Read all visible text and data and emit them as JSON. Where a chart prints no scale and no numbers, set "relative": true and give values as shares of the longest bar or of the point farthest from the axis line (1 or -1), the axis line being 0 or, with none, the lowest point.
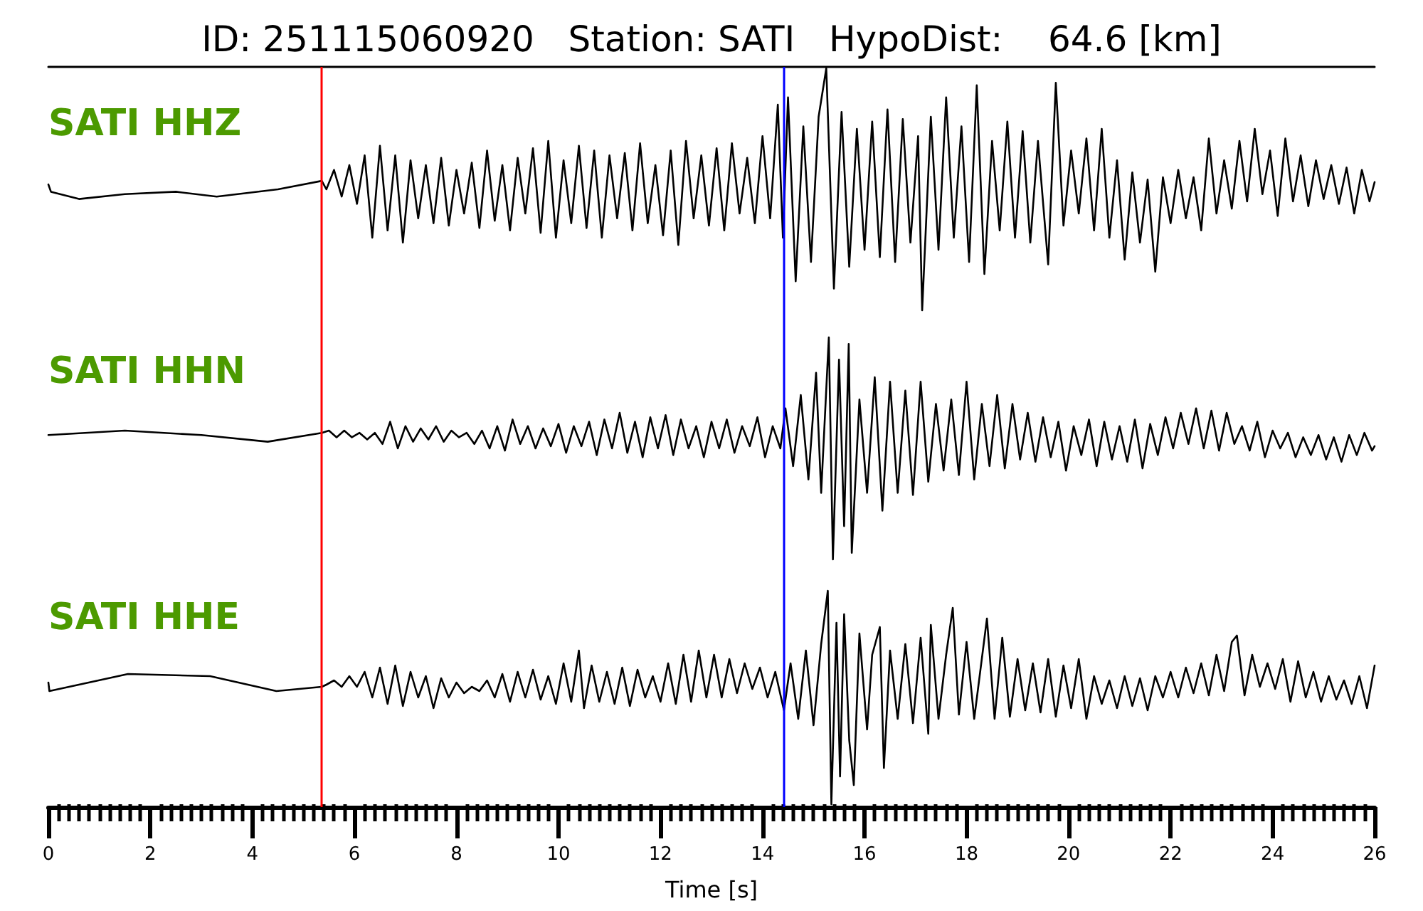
{
  "chart_data": [
    {
      "type": "line",
      "title": "ID: 251115060920   Station: SATI   HypoDist:    64.6 [km]",
      "relative": true,
      "xlim": [
        0,
        26
      ],
      "tick_labels": false,
      "ref_lines": [
        {
          "axis": "x",
          "value": 5.36,
          "color": "#ff0000"
        },
        {
          "axis": "x",
          "value": 14.42,
          "color": "#0000ff"
        }
      ],
      "series": [
        {
          "name": "SATI HHZ",
          "color": "#000000",
          "x": [
            0,
            0.05,
            0.6,
            1.5,
            2.5,
            3.3,
            4.5,
            5.36,
            5.45,
            5.6,
            5.75,
            5.9,
            6.05,
            6.2,
            6.35,
            6.5,
            6.65,
            6.8,
            6.95,
            7.1,
            7.25,
            7.4,
            7.55,
            7.7,
            7.85,
            8.0,
            8.15,
            8.3,
            8.45,
            8.6,
            8.75,
            8.9,
            9.05,
            9.2,
            9.35,
            9.5,
            9.65,
            9.8,
            9.95,
            10.1,
            10.25,
            10.4,
            10.55,
            10.7,
            10.85,
            11.0,
            11.15,
            11.3,
            11.45,
            11.6,
            11.75,
            11.9,
            12.05,
            12.2,
            12.35,
            12.5,
            12.65,
            12.8,
            12.95,
            13.1,
            13.25,
            13.4,
            13.55,
            13.7,
            13.85,
            14.0,
            14.15,
            14.3,
            14.4,
            14.5,
            14.65,
            14.8,
            14.95,
            15.1,
            15.25,
            15.4,
            15.55,
            15.7,
            15.85,
            16.0,
            16.15,
            16.3,
            16.45,
            16.6,
            16.75,
            16.9,
            17.05,
            17.13,
            17.3,
            17.45,
            17.6,
            17.75,
            17.9,
            18.05,
            18.2,
            18.35,
            18.5,
            18.65,
            18.8,
            18.95,
            19.1,
            19.25,
            19.4,
            19.6,
            19.75,
            19.9,
            20.05,
            20.2,
            20.35,
            20.5,
            20.65,
            20.8,
            20.95,
            21.1,
            21.25,
            21.4,
            21.55,
            21.7,
            21.85,
            22.0,
            22.15,
            22.3,
            22.45,
            22.6,
            22.75,
            22.9,
            23.05,
            23.2,
            23.35,
            23.5,
            23.65,
            23.8,
            23.95,
            24.1,
            24.25,
            24.4,
            24.55,
            24.7,
            24.85,
            25.0,
            25.15,
            25.3,
            25.45,
            25.6,
            25.75,
            25.9,
            26.0
          ],
          "values": [
            0.52,
            0.49,
            0.46,
            0.48,
            0.49,
            0.47,
            0.5,
            0.535,
            0.5,
            0.58,
            0.47,
            0.6,
            0.44,
            0.64,
            0.3,
            0.68,
            0.33,
            0.64,
            0.28,
            0.62,
            0.38,
            0.6,
            0.36,
            0.63,
            0.35,
            0.58,
            0.4,
            0.61,
            0.34,
            0.66,
            0.37,
            0.6,
            0.33,
            0.63,
            0.4,
            0.67,
            0.32,
            0.7,
            0.3,
            0.62,
            0.36,
            0.68,
            0.34,
            0.66,
            0.3,
            0.64,
            0.38,
            0.65,
            0.33,
            0.69,
            0.36,
            0.6,
            0.31,
            0.66,
            0.27,
            0.7,
            0.38,
            0.64,
            0.35,
            0.67,
            0.33,
            0.69,
            0.4,
            0.63,
            0.36,
            0.72,
            0.38,
            0.85,
            0.3,
            0.88,
            0.12,
            0.76,
            0.2,
            0.8,
            1.0,
            0.09,
            0.82,
            0.18,
            0.75,
            0.25,
            0.78,
            0.22,
            0.83,
            0.2,
            0.79,
            0.28,
            0.72,
            0.0,
            0.8,
            0.25,
            0.88,
            0.3,
            0.76,
            0.2,
            0.93,
            0.15,
            0.7,
            0.33,
            0.78,
            0.3,
            0.74,
            0.28,
            0.7,
            0.19,
            0.94,
            0.35,
            0.66,
            0.4,
            0.71,
            0.33,
            0.75,
            0.3,
            0.62,
            0.21,
            0.57,
            0.28,
            0.54,
            0.16,
            0.55,
            0.36,
            0.58,
            0.38,
            0.55,
            0.33,
            0.71,
            0.4,
            0.62,
            0.42,
            0.7,
            0.45,
            0.75,
            0.48,
            0.66,
            0.39,
            0.71,
            0.45,
            0.64,
            0.43,
            0.62,
            0.46,
            0.6,
            0.44,
            0.59,
            0.4,
            0.58,
            0.45,
            0.53
          ]
        }
      ]
    },
    {
      "type": "line",
      "relative": true,
      "xlim": [
        0,
        26
      ],
      "tick_labels": false,
      "ref_lines": [
        {
          "axis": "x",
          "value": 5.36,
          "color": "#ff0000"
        },
        {
          "axis": "x",
          "value": 14.42,
          "color": "#0000ff"
        }
      ],
      "series": [
        {
          "name": "SATI HHN",
          "color": "#000000",
          "x": [
            0,
            1.5,
            3.0,
            4.3,
            5.36,
            5.5,
            5.65,
            5.8,
            5.95,
            6.1,
            6.25,
            6.4,
            6.55,
            6.7,
            6.85,
            7.0,
            7.15,
            7.3,
            7.45,
            7.6,
            7.75,
            7.9,
            8.05,
            8.2,
            8.35,
            8.5,
            8.65,
            8.8,
            8.95,
            9.1,
            9.25,
            9.4,
            9.55,
            9.7,
            9.85,
            10.0,
            10.15,
            10.3,
            10.45,
            10.6,
            10.75,
            10.9,
            11.05,
            11.2,
            11.35,
            11.5,
            11.65,
            11.8,
            11.95,
            12.1,
            12.25,
            12.4,
            12.55,
            12.7,
            12.85,
            13.0,
            13.15,
            13.3,
            13.45,
            13.6,
            13.75,
            13.9,
            14.05,
            14.2,
            14.35,
            14.45,
            14.6,
            14.75,
            14.9,
            15.05,
            15.15,
            15.3,
            15.38,
            15.5,
            15.6,
            15.69,
            15.75,
            15.9,
            16.05,
            16.2,
            16.35,
            16.5,
            16.65,
            16.8,
            16.95,
            17.1,
            17.25,
            17.4,
            17.55,
            17.7,
            17.85,
            18.0,
            18.15,
            18.3,
            18.45,
            18.6,
            18.75,
            18.9,
            19.05,
            19.2,
            19.35,
            19.5,
            19.65,
            19.8,
            19.95,
            20.1,
            20.25,
            20.4,
            20.55,
            20.7,
            20.85,
            21.0,
            21.15,
            21.3,
            21.45,
            21.6,
            21.75,
            21.9,
            22.05,
            22.2,
            22.35,
            22.5,
            22.65,
            22.8,
            22.95,
            23.1,
            23.25,
            23.4,
            23.55,
            23.7,
            23.85,
            24.0,
            24.15,
            24.3,
            24.45,
            24.6,
            24.75,
            24.9,
            25.05,
            25.2,
            25.35,
            25.5,
            25.65,
            25.8,
            25.95,
            26.0
          ],
          "values": [
            0.56,
            0.58,
            0.56,
            0.53,
            0.57,
            0.58,
            0.55,
            0.58,
            0.55,
            0.57,
            0.54,
            0.57,
            0.52,
            0.62,
            0.5,
            0.6,
            0.53,
            0.59,
            0.54,
            0.6,
            0.53,
            0.58,
            0.55,
            0.57,
            0.52,
            0.58,
            0.5,
            0.6,
            0.49,
            0.63,
            0.52,
            0.6,
            0.5,
            0.59,
            0.51,
            0.61,
            0.48,
            0.6,
            0.51,
            0.62,
            0.47,
            0.63,
            0.5,
            0.66,
            0.48,
            0.62,
            0.46,
            0.64,
            0.5,
            0.65,
            0.47,
            0.63,
            0.5,
            0.6,
            0.46,
            0.62,
            0.5,
            0.63,
            0.48,
            0.6,
            0.51,
            0.64,
            0.46,
            0.6,
            0.5,
            0.68,
            0.42,
            0.74,
            0.36,
            0.84,
            0.3,
            1.0,
            0.0,
            0.9,
            0.15,
            0.97,
            0.03,
            0.72,
            0.3,
            0.82,
            0.22,
            0.8,
            0.3,
            0.76,
            0.29,
            0.8,
            0.35,
            0.7,
            0.4,
            0.72,
            0.38,
            0.8,
            0.36,
            0.7,
            0.42,
            0.74,
            0.41,
            0.7,
            0.45,
            0.66,
            0.44,
            0.64,
            0.46,
            0.62,
            0.4,
            0.6,
            0.47,
            0.63,
            0.42,
            0.62,
            0.45,
            0.6,
            0.44,
            0.63,
            0.41,
            0.61,
            0.47,
            0.64,
            0.5,
            0.66,
            0.52,
            0.68,
            0.5,
            0.67,
            0.49,
            0.66,
            0.52,
            0.6,
            0.49,
            0.62,
            0.46,
            0.58,
            0.5,
            0.57,
            0.46,
            0.55,
            0.47,
            0.56,
            0.45,
            0.55,
            0.44,
            0.56,
            0.47,
            0.57,
            0.49,
            0.51
          ]
        }
      ]
    },
    {
      "type": "line",
      "relative": true,
      "xlabel": "Time [s]",
      "xlim": [
        0,
        26
      ],
      "tick_labels": "x",
      "xticks": [
        0,
        {
          "value": 0.2,
          "label": null
        },
        {
          "value": 0.4,
          "label": null
        },
        {
          "value": 0.6,
          "label": null
        },
        {
          "value": 0.8,
          "label": null
        },
        {
          "value": 1,
          "label": null
        },
        {
          "value": 1.2,
          "label": null
        },
        {
          "value": 1.4,
          "label": null
        },
        {
          "value": 1.6,
          "label": null
        },
        {
          "value": 1.8,
          "label": null
        },
        2,
        {
          "value": 2.2,
          "label": null
        },
        {
          "value": 2.4,
          "label": null
        },
        {
          "value": 2.6,
          "label": null
        },
        {
          "value": 2.8,
          "label": null
        },
        {
          "value": 3,
          "label": null
        },
        {
          "value": 3.2,
          "label": null
        },
        {
          "value": 3.4,
          "label": null
        },
        {
          "value": 3.6,
          "label": null
        },
        {
          "value": 3.8,
          "label": null
        },
        4,
        {
          "value": 4.2,
          "label": null
        },
        {
          "value": 4.4,
          "label": null
        },
        {
          "value": 4.6,
          "label": null
        },
        {
          "value": 4.8,
          "label": null
        },
        {
          "value": 5,
          "label": null
        },
        {
          "value": 5.2,
          "label": null
        },
        {
          "value": 5.4,
          "label": null
        },
        {
          "value": 5.6,
          "label": null
        },
        {
          "value": 5.8,
          "label": null
        },
        6,
        {
          "value": 6.2,
          "label": null
        },
        {
          "value": 6.4,
          "label": null
        },
        {
          "value": 6.6,
          "label": null
        },
        {
          "value": 6.8,
          "label": null
        },
        {
          "value": 7,
          "label": null
        },
        {
          "value": 7.2,
          "label": null
        },
        {
          "value": 7.4,
          "label": null
        },
        {
          "value": 7.6,
          "label": null
        },
        {
          "value": 7.8,
          "label": null
        },
        8,
        {
          "value": 8.2,
          "label": null
        },
        {
          "value": 8.4,
          "label": null
        },
        {
          "value": 8.6,
          "label": null
        },
        {
          "value": 8.8,
          "label": null
        },
        {
          "value": 9,
          "label": null
        },
        {
          "value": 9.2,
          "label": null
        },
        {
          "value": 9.4,
          "label": null
        },
        {
          "value": 9.6,
          "label": null
        },
        {
          "value": 9.8,
          "label": null
        },
        10,
        {
          "value": 10.2,
          "label": null
        },
        {
          "value": 10.4,
          "label": null
        },
        {
          "value": 10.6,
          "label": null
        },
        {
          "value": 10.8,
          "label": null
        },
        {
          "value": 11,
          "label": null
        },
        {
          "value": 11.2,
          "label": null
        },
        {
          "value": 11.4,
          "label": null
        },
        {
          "value": 11.6,
          "label": null
        },
        {
          "value": 11.8,
          "label": null
        },
        12,
        {
          "value": 12.2,
          "label": null
        },
        {
          "value": 12.4,
          "label": null
        },
        {
          "value": 12.6,
          "label": null
        },
        {
          "value": 12.8,
          "label": null
        },
        {
          "value": 13,
          "label": null
        },
        {
          "value": 13.2,
          "label": null
        },
        {
          "value": 13.4,
          "label": null
        },
        {
          "value": 13.6,
          "label": null
        },
        {
          "value": 13.8,
          "label": null
        },
        14,
        {
          "value": 14.2,
          "label": null
        },
        {
          "value": 14.4,
          "label": null
        },
        {
          "value": 14.6,
          "label": null
        },
        {
          "value": 14.8,
          "label": null
        },
        {
          "value": 15,
          "label": null
        },
        {
          "value": 15.2,
          "label": null
        },
        {
          "value": 15.4,
          "label": null
        },
        {
          "value": 15.6,
          "label": null
        },
        {
          "value": 15.8,
          "label": null
        },
        16,
        {
          "value": 16.2,
          "label": null
        },
        {
          "value": 16.4,
          "label": null
        },
        {
          "value": 16.6,
          "label": null
        },
        {
          "value": 16.8,
          "label": null
        },
        {
          "value": 17,
          "label": null
        },
        {
          "value": 17.2,
          "label": null
        },
        {
          "value": 17.4,
          "label": null
        },
        {
          "value": 17.6,
          "label": null
        },
        {
          "value": 17.8,
          "label": null
        },
        18,
        {
          "value": 18.2,
          "label": null
        },
        {
          "value": 18.4,
          "label": null
        },
        {
          "value": 18.6,
          "label": null
        },
        {
          "value": 18.8,
          "label": null
        },
        {
          "value": 19,
          "label": null
        },
        {
          "value": 19.2,
          "label": null
        },
        {
          "value": 19.4,
          "label": null
        },
        {
          "value": 19.6,
          "label": null
        },
        {
          "value": 19.8,
          "label": null
        },
        20,
        {
          "value": 20.2,
          "label": null
        },
        {
          "value": 20.4,
          "label": null
        },
        {
          "value": 20.6,
          "label": null
        },
        {
          "value": 20.8,
          "label": null
        },
        {
          "value": 21,
          "label": null
        },
        {
          "value": 21.2,
          "label": null
        },
        {
          "value": 21.4,
          "label": null
        },
        {
          "value": 21.6,
          "label": null
        },
        {
          "value": 21.8,
          "label": null
        },
        22,
        {
          "value": 22.2,
          "label": null
        },
        {
          "value": 22.4,
          "label": null
        },
        {
          "value": 22.6,
          "label": null
        },
        {
          "value": 22.8,
          "label": null
        },
        {
          "value": 23,
          "label": null
        },
        {
          "value": 23.2,
          "label": null
        },
        {
          "value": 23.4,
          "label": null
        },
        {
          "value": 23.6,
          "label": null
        },
        {
          "value": 23.8,
          "label": null
        },
        24,
        {
          "value": 24.2,
          "label": null
        },
        {
          "value": 24.4,
          "label": null
        },
        {
          "value": 24.6,
          "label": null
        },
        {
          "value": 24.8,
          "label": null
        },
        {
          "value": 25,
          "label": null
        },
        {
          "value": 25.2,
          "label": null
        },
        {
          "value": 25.4,
          "label": null
        },
        {
          "value": 25.6,
          "label": null
        },
        {
          "value": 25.8,
          "label": null
        },
        26
      ],
      "ref_lines": [
        {
          "axis": "x",
          "value": 5.36,
          "color": "#ff0000"
        },
        {
          "axis": "x",
          "value": 14.42,
          "color": "#0000ff"
        }
      ],
      "series": [
        {
          "name": "SATI HHE",
          "color": "#000000",
          "x": [
            0,
            0.02,
            1.56,
            3.17,
            4.47,
            5.36,
            5.45,
            5.6,
            5.75,
            5.9,
            6.05,
            6.2,
            6.35,
            6.5,
            6.65,
            6.8,
            6.95,
            7.1,
            7.25,
            7.4,
            7.55,
            7.7,
            7.85,
            8.0,
            8.15,
            8.3,
            8.45,
            8.6,
            8.75,
            8.9,
            9.05,
            9.2,
            9.35,
            9.5,
            9.65,
            9.8,
            9.95,
            10.1,
            10.25,
            10.4,
            10.5,
            10.65,
            10.8,
            10.95,
            11.1,
            11.25,
            11.4,
            11.55,
            11.7,
            11.85,
            12.0,
            12.15,
            12.3,
            12.45,
            12.6,
            12.75,
            12.9,
            13.05,
            13.2,
            13.35,
            13.5,
            13.65,
            13.8,
            13.95,
            14.1,
            14.25,
            14.42,
            14.55,
            14.7,
            14.85,
            15.0,
            15.15,
            15.28,
            15.35,
            15.45,
            15.52,
            15.6,
            15.7,
            15.79,
            15.9,
            16.05,
            16.15,
            16.3,
            16.38,
            16.5,
            16.65,
            16.8,
            16.95,
            17.1,
            17.25,
            17.3,
            17.45,
            17.6,
            17.73,
            17.85,
            18.0,
            18.15,
            18.4,
            18.55,
            18.7,
            18.85,
            19.0,
            19.15,
            19.3,
            19.45,
            19.6,
            19.75,
            19.9,
            20.05,
            20.2,
            20.35,
            20.5,
            20.65,
            20.8,
            20.95,
            21.1,
            21.25,
            21.4,
            21.55,
            21.7,
            21.85,
            22.0,
            22.15,
            22.3,
            22.45,
            22.6,
            22.75,
            22.9,
            23.05,
            23.2,
            23.3,
            23.45,
            23.6,
            23.75,
            23.9,
            24.05,
            24.2,
            24.35,
            24.5,
            24.65,
            24.8,
            24.95,
            25.1,
            25.25,
            25.4,
            25.55,
            25.7,
            25.85,
            26.0
          ],
          "values": [
            0.57,
            0.53,
            0.61,
            0.6,
            0.53,
            0.55,
            0.56,
            0.58,
            0.55,
            0.6,
            0.55,
            0.62,
            0.5,
            0.64,
            0.47,
            0.65,
            0.46,
            0.62,
            0.5,
            0.6,
            0.45,
            0.59,
            0.5,
            0.57,
            0.52,
            0.55,
            0.53,
            0.58,
            0.5,
            0.61,
            0.48,
            0.62,
            0.5,
            0.63,
            0.49,
            0.6,
            0.47,
            0.66,
            0.48,
            0.72,
            0.45,
            0.65,
            0.48,
            0.62,
            0.47,
            0.64,
            0.46,
            0.63,
            0.5,
            0.6,
            0.48,
            0.66,
            0.47,
            0.7,
            0.48,
            0.72,
            0.5,
            0.7,
            0.5,
            0.68,
            0.52,
            0.66,
            0.54,
            0.64,
            0.5,
            0.62,
            0.44,
            0.66,
            0.4,
            0.72,
            0.37,
            0.75,
            1.0,
            0.0,
            0.85,
            0.13,
            0.89,
            0.3,
            0.09,
            0.8,
            0.35,
            0.7,
            0.83,
            0.17,
            0.72,
            0.4,
            0.75,
            0.38,
            0.78,
            0.33,
            0.84,
            0.4,
            0.7,
            0.92,
            0.42,
            0.76,
            0.4,
            0.87,
            0.4,
            0.78,
            0.41,
            0.68,
            0.44,
            0.66,
            0.43,
            0.68,
            0.41,
            0.65,
            0.45,
            0.68,
            0.4,
            0.6,
            0.47,
            0.58,
            0.45,
            0.6,
            0.46,
            0.59,
            0.44,
            0.6,
            0.5,
            0.62,
            0.5,
            0.64,
            0.52,
            0.66,
            0.51,
            0.7,
            0.53,
            0.76,
            0.79,
            0.51,
            0.7,
            0.55,
            0.66,
            0.54,
            0.68,
            0.48,
            0.67,
            0.5,
            0.62,
            0.48,
            0.6,
            0.49,
            0.58,
            0.47,
            0.6,
            0.45,
            0.65
          ]
        }
      ]
    }
  ]
}
